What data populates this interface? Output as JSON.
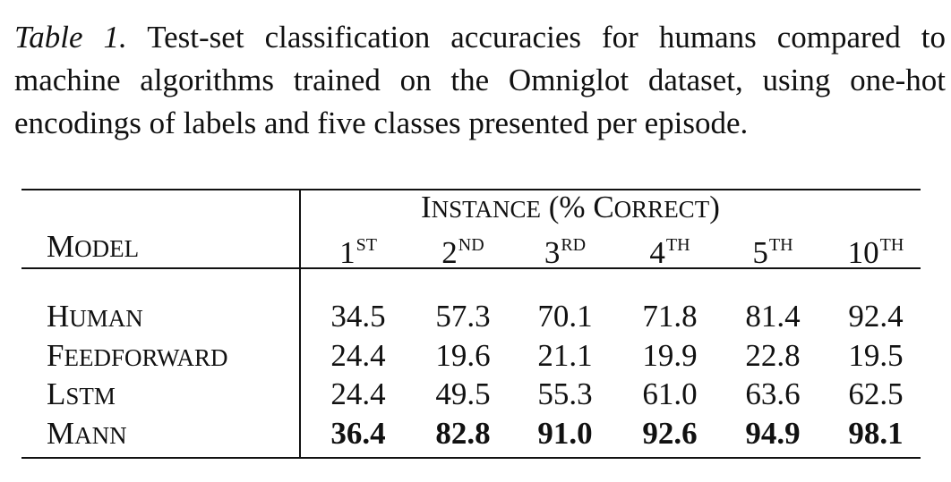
{
  "caption": {
    "label": "Table 1.",
    "text": "Test-set classification accuracies for humans compared to machine algorithms trained on the Omniglot dataset, using one-hot encodings of labels and five classes presented per episode."
  },
  "table": {
    "header": {
      "group_label": "Instance (% Correct)",
      "model_label": "Model",
      "columns": [
        {
          "num": "1",
          "suffix": "ST"
        },
        {
          "num": "2",
          "suffix": "ND"
        },
        {
          "num": "3",
          "suffix": "RD"
        },
        {
          "num": "4",
          "suffix": "TH"
        },
        {
          "num": "5",
          "suffix": "TH"
        },
        {
          "num": "10",
          "suffix": "TH"
        }
      ]
    },
    "rows": [
      {
        "model": "Human",
        "values": [
          "34.5",
          "57.3",
          "70.1",
          "71.8",
          "81.4",
          "92.4"
        ],
        "bold": false
      },
      {
        "model": "Feedforward",
        "values": [
          "24.4",
          "19.6",
          "21.1",
          "19.9",
          "22.8",
          "19.5"
        ],
        "bold": false
      },
      {
        "model": "LSTM",
        "values": [
          "24.4",
          "49.5",
          "55.3",
          "61.0",
          "63.6",
          "62.5"
        ],
        "bold": false
      },
      {
        "model": "MANN",
        "values": [
          "36.4",
          "82.8",
          "91.0",
          "92.6",
          "94.9",
          "98.1"
        ],
        "bold": true
      }
    ]
  }
}
